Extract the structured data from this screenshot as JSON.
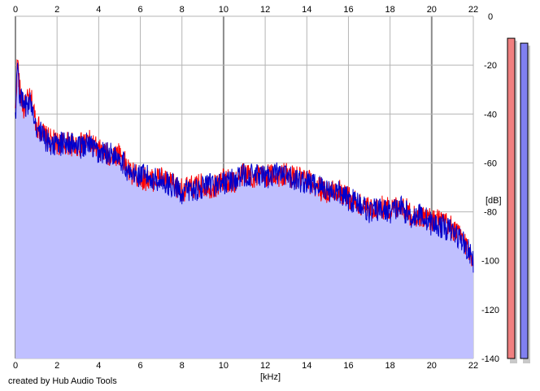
{
  "footer": {
    "credit": "created by Hub Audio Tools"
  },
  "colors": {
    "background": "#ffffff",
    "fill": "#c0c0ff",
    "grid": "#b4b4b4",
    "grid_major": "#8c8c8c",
    "left_channel": "#ff0000",
    "right_channel": "#0000cc",
    "meter_left": "#f08080",
    "meter_right": "#8080f0"
  },
  "meters": {
    "left_level_db": -9,
    "right_level_db": -11
  },
  "chart_data": {
    "type": "line",
    "title": "",
    "xlabel": "[kHz]",
    "ylabel": "[dB]",
    "xlim": [
      0,
      22
    ],
    "ylim": [
      -140,
      0
    ],
    "x_ticks": [
      "0",
      "2",
      "4",
      "6",
      "8",
      "10",
      "12",
      "14",
      "16",
      "18",
      "20",
      "22"
    ],
    "y_ticks": [
      "0",
      "-20",
      "-40",
      "-60",
      "-80",
      "-100",
      "-120",
      "-140"
    ],
    "grid": true,
    "series": [
      {
        "channel": "left",
        "color": "#ff0000",
        "x": [
          0,
          0.1,
          0.2,
          0.4,
          0.6,
          0.8,
          1,
          1.5,
          2,
          2.5,
          3,
          3.5,
          4,
          4.5,
          5,
          5.5,
          6,
          6.5,
          7,
          7.5,
          8,
          8.5,
          9,
          9.5,
          10,
          10.5,
          11,
          11.5,
          12,
          12.5,
          13,
          13.5,
          14,
          14.5,
          15,
          15.5,
          16,
          16.5,
          17,
          17.5,
          18,
          18.5,
          19,
          19.5,
          20,
          20.5,
          21,
          21.5,
          22
        ],
        "y": [
          -40,
          -17,
          -30,
          -38,
          -34,
          -35,
          -44,
          -50,
          -52,
          -52,
          -53,
          -51,
          -55,
          -57,
          -56,
          -64,
          -66,
          -67,
          -66,
          -69,
          -71,
          -70,
          -69,
          -70,
          -67,
          -68,
          -64,
          -66,
          -65,
          -65,
          -65,
          -66,
          -67,
          -70,
          -72,
          -71,
          -74,
          -77,
          -79,
          -78,
          -79,
          -77,
          -81,
          -82,
          -83,
          -84,
          -87,
          -91,
          -99
        ]
      },
      {
        "channel": "right",
        "color": "#0000cc",
        "x": [
          0,
          0.1,
          0.2,
          0.4,
          0.6,
          0.8,
          1,
          1.5,
          2,
          2.5,
          3,
          3.5,
          4,
          4.5,
          5,
          5.5,
          6,
          6.5,
          7,
          7.5,
          8,
          8.5,
          9,
          9.5,
          10,
          10.5,
          11,
          11.5,
          12,
          12.5,
          13,
          13.5,
          14,
          14.5,
          15,
          15.5,
          16,
          16.5,
          17,
          17.5,
          18,
          18.5,
          19,
          19.5,
          20,
          20.5,
          21,
          21.5,
          22
        ],
        "y": [
          -42,
          -18,
          -32,
          -37,
          -36,
          -36,
          -45,
          -51,
          -53,
          -51,
          -54,
          -52,
          -56,
          -56,
          -57,
          -65,
          -65,
          -66,
          -67,
          -69,
          -72,
          -71,
          -70,
          -69,
          -68,
          -67,
          -65,
          -65,
          -66,
          -64,
          -66,
          -67,
          -68,
          -69,
          -71,
          -72,
          -75,
          -76,
          -80,
          -79,
          -80,
          -78,
          -82,
          -81,
          -85,
          -86,
          -88,
          -92,
          -100
        ]
      }
    ]
  }
}
